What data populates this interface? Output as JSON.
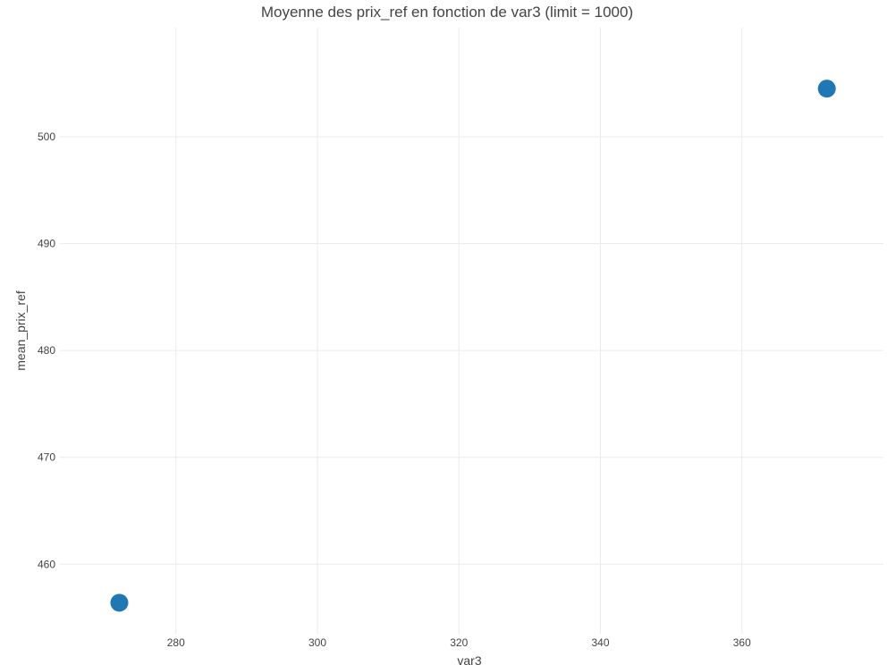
{
  "chart_data": {
    "type": "scatter",
    "title": "Moyenne des prix_ref en fonction de var3 (limit = 1000)",
    "xlabel": "var3",
    "ylabel": "mean_prix_ref",
    "xlim": [
      263.6,
      380.0
    ],
    "ylim": [
      453.5,
      510.2
    ],
    "xticks": [
      280,
      300,
      320,
      340,
      360
    ],
    "yticks": [
      460,
      470,
      480,
      490,
      500
    ],
    "grid": true,
    "legend": "none",
    "marker_color": "#1f77b4",
    "points": [
      {
        "x": 272,
        "y": 456.4
      },
      {
        "x": 372,
        "y": 504.5
      }
    ]
  }
}
